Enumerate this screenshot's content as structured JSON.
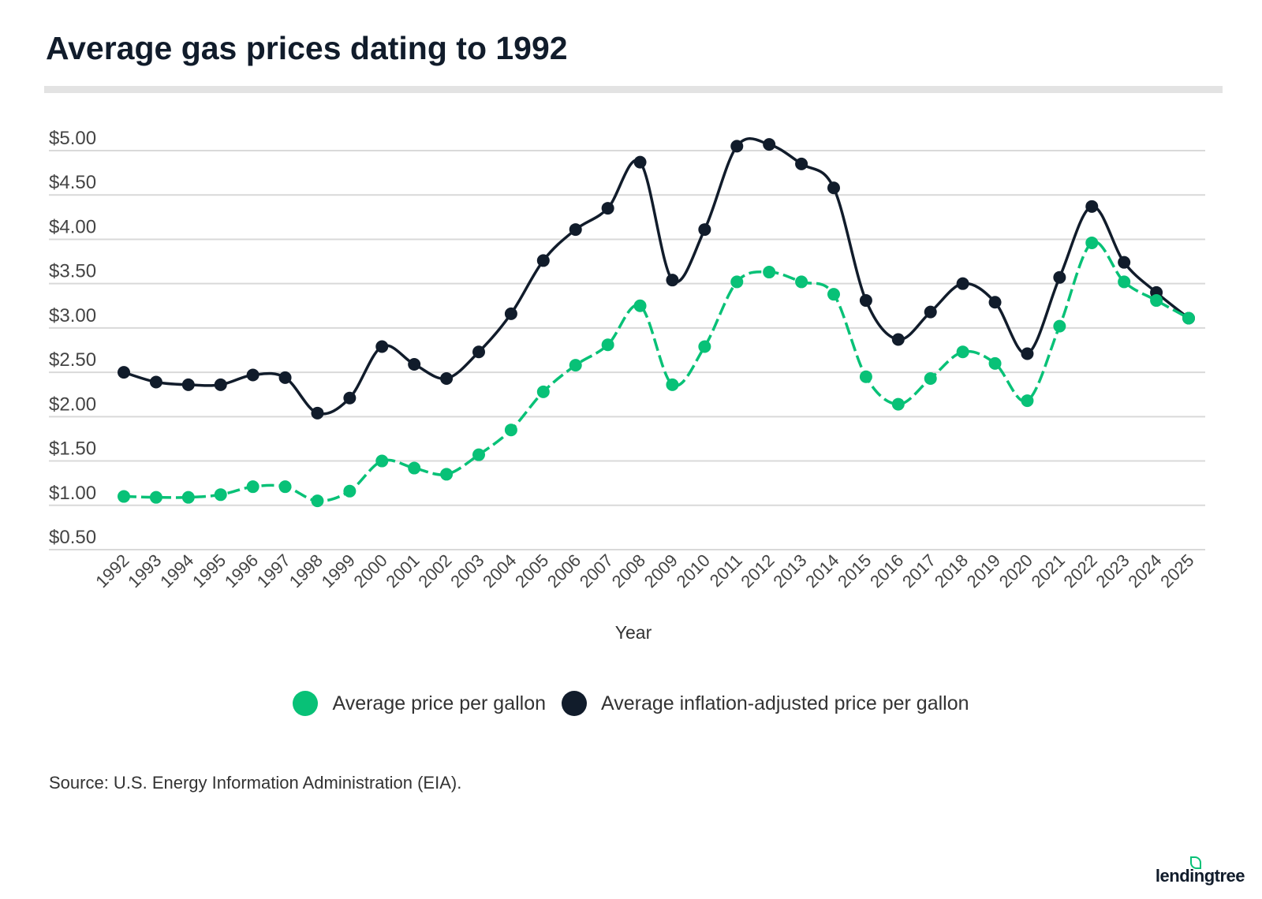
{
  "title": "Average gas prices dating to 1992",
  "source": "Source: U.S. Energy Information Administration (EIA).",
  "logo_text": "lendingtree",
  "colors": {
    "nominal": "#08c177",
    "adjusted": "#111c2b",
    "grid": "#d9d9d9"
  },
  "chart_data": {
    "type": "line",
    "title": "Average gas prices dating to 1992",
    "xlabel": "Year",
    "ylabel": "",
    "ylim": [
      0.5,
      5.0
    ],
    "yticks": [
      "$0.50",
      "$1.00",
      "$1.50",
      "$2.00",
      "$2.50",
      "$3.00",
      "$3.50",
      "$4.00",
      "$4.50",
      "$5.00"
    ],
    "ytick_values": [
      0.5,
      1.0,
      1.5,
      2.0,
      2.5,
      3.0,
      3.5,
      4.0,
      4.5,
      5.0
    ],
    "grid": true,
    "legend_position": "bottom",
    "x": [
      "1992",
      "1993",
      "1994",
      "1995",
      "1996",
      "1997",
      "1998",
      "1999",
      "2000",
      "2001",
      "2002",
      "2003",
      "2004",
      "2005",
      "2006",
      "2007",
      "2008",
      "2009",
      "2010",
      "2011",
      "2012",
      "2013",
      "2014",
      "2015",
      "2016",
      "2017",
      "2018",
      "2019",
      "2020",
      "2021",
      "2022",
      "2023",
      "2024",
      "2025"
    ],
    "series": [
      {
        "name": "Average price per gallon",
        "color": "#08c177",
        "values": [
          1.1,
          1.09,
          1.09,
          1.12,
          1.21,
          1.21,
          1.05,
          1.16,
          1.5,
          1.42,
          1.35,
          1.57,
          1.85,
          2.28,
          2.58,
          2.81,
          3.25,
          2.36,
          2.79,
          3.52,
          3.63,
          3.52,
          3.38,
          2.45,
          2.14,
          2.43,
          2.73,
          2.6,
          2.18,
          3.02,
          3.96,
          3.52,
          3.31,
          3.11
        ]
      },
      {
        "name": "Average inflation-adjusted price per gallon",
        "color": "#111c2b",
        "values": [
          2.5,
          2.39,
          2.36,
          2.36,
          2.47,
          2.44,
          2.04,
          2.21,
          2.79,
          2.59,
          2.43,
          2.73,
          3.16,
          3.76,
          4.11,
          4.35,
          4.87,
          3.54,
          4.11,
          5.05,
          5.07,
          4.85,
          4.58,
          3.31,
          2.87,
          3.18,
          3.5,
          3.29,
          2.71,
          3.57,
          4.37,
          3.74,
          3.4,
          3.11
        ]
      }
    ]
  }
}
